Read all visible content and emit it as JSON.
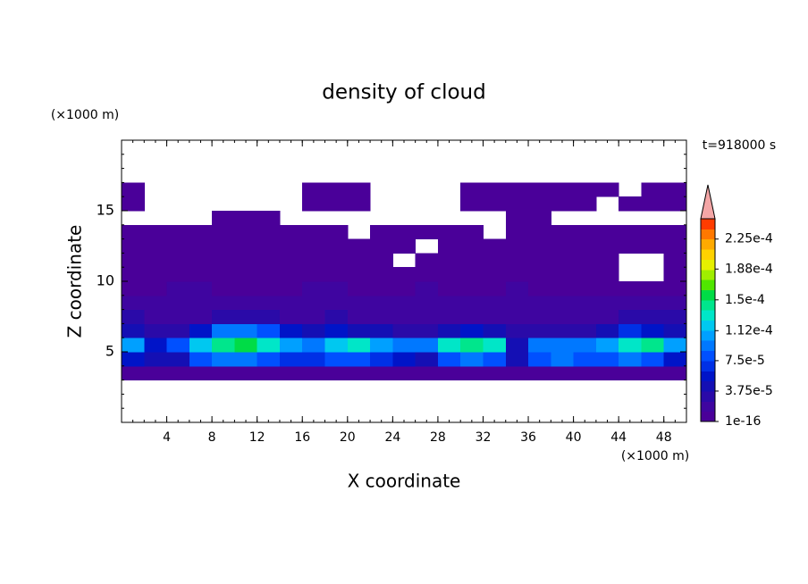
{
  "chart_data": {
    "type": "contour",
    "title": "density of cloud",
    "x_label": "X coordinate",
    "y_label": "Z coordinate",
    "x_unit": "(×1000 m)",
    "y_unit": "(×1000 m)",
    "time_label": "t=918000 s",
    "xlim": [
      0,
      50
    ],
    "ylim": [
      0,
      20
    ],
    "xticks": [
      4,
      8,
      12,
      16,
      20,
      24,
      28,
      32,
      36,
      40,
      44,
      48
    ],
    "yticks": [
      5,
      10,
      15
    ],
    "x": [
      1,
      3,
      5,
      7,
      9,
      11,
      13,
      15,
      17,
      19,
      21,
      23,
      25,
      27,
      29,
      31,
      33,
      35,
      37,
      39,
      41,
      43,
      45,
      47,
      49
    ],
    "z": [
      3.5,
      4.5,
      5.5,
      6.5,
      7.5,
      8.5,
      9.5,
      10.5,
      11.5,
      12.5,
      13.5,
      14.5,
      15.5,
      16.5
    ],
    "values": [
      [
        5e-06,
        5e-06,
        5e-06,
        5e-06,
        5e-06,
        5e-06,
        5e-06,
        5e-06,
        5e-06,
        5e-06,
        5e-06,
        5e-06,
        5e-06,
        5e-06,
        5e-06,
        5e-06,
        5e-06,
        5e-06,
        5e-06,
        5e-06,
        5e-06,
        5e-06,
        5e-06,
        5e-06,
        5e-06
      ],
      [
        6e-05,
        4e-05,
        5e-05,
        8e-05,
        9e-05,
        9e-05,
        8e-05,
        7e-05,
        7e-05,
        8e-05,
        8e-05,
        7e-05,
        6e-05,
        5e-05,
        8e-05,
        9e-05,
        8e-05,
        4e-05,
        8e-05,
        9e-05,
        8e-05,
        8e-05,
        9e-05,
        8e-05,
        6e-05
      ],
      [
        0.00011,
        6e-05,
        8e-05,
        0.00012,
        0.00015,
        0.00016,
        0.00013,
        0.00011,
        9e-05,
        0.00012,
        0.00013,
        0.00011,
        9e-05,
        9e-05,
        0.00013,
        0.00014,
        0.00013,
        5e-05,
        0.0001,
        0.0001,
        9e-05,
        0.00011,
        0.00013,
        0.00014,
        0.00011
      ],
      [
        5e-05,
        3e-05,
        3e-05,
        6e-05,
        9e-05,
        0.0001,
        8e-05,
        6e-05,
        5e-05,
        6e-05,
        5e-05,
        4e-05,
        3e-05,
        3e-05,
        5e-05,
        6e-05,
        4e-05,
        3e-05,
        3e-05,
        3e-05,
        3e-05,
        5e-05,
        7e-05,
        6e-05,
        5e-05
      ],
      [
        3e-05,
        2.5e-05,
        2e-05,
        2.5e-05,
        3e-05,
        3e-05,
        3e-05,
        2.5e-05,
        2.5e-05,
        3e-05,
        2.5e-05,
        2.5e-05,
        2e-05,
        2e-05,
        2.5e-05,
        2.5e-05,
        2e-05,
        2e-05,
        2e-05,
        1.5e-05,
        2e-05,
        2e-05,
        3e-05,
        3e-05,
        3e-05
      ],
      [
        2e-05,
        1.5e-05,
        1.3e-05,
        1.5e-05,
        1.5e-05,
        1.5e-05,
        1.5e-05,
        1.5e-05,
        1.3e-05,
        1.5e-05,
        1.3e-05,
        1.3e-05,
        1.3e-05,
        1.3e-05,
        1.3e-05,
        1.3e-05,
        1.3e-05,
        1.3e-05,
        1.3e-05,
        1.3e-05,
        1.3e-05,
        1.3e-05,
        1.5e-05,
        2e-05,
        2.5e-05
      ],
      [
        5e-06,
        5e-06,
        1.3e-05,
        1.3e-05,
        5e-06,
        5e-06,
        5e-06,
        5e-06,
        1.3e-05,
        1.3e-05,
        5e-06,
        5e-06,
        5e-06,
        1.3e-05,
        5e-06,
        5e-06,
        5e-06,
        1.3e-05,
        5e-06,
        5e-06,
        5e-06,
        5e-06,
        5e-06,
        5e-06,
        5e-06
      ],
      [
        5e-06,
        5e-06,
        5e-06,
        5e-06,
        5e-06,
        5e-06,
        5e-06,
        5e-06,
        5e-06,
        5e-06,
        5e-06,
        5e-06,
        5e-06,
        5e-06,
        5e-06,
        5e-06,
        5e-06,
        5e-06,
        5e-06,
        5e-06,
        5e-06,
        5e-06,
        null,
        null,
        5e-06
      ],
      [
        5e-06,
        5e-06,
        5e-06,
        5e-06,
        5e-06,
        5e-06,
        5e-06,
        5e-06,
        5e-06,
        5e-06,
        5e-06,
        5e-06,
        null,
        5e-06,
        5e-06,
        5e-06,
        5e-06,
        5e-06,
        5e-06,
        5e-06,
        5e-06,
        5e-06,
        null,
        null,
        5e-06
      ],
      [
        5e-06,
        5e-06,
        5e-06,
        5e-06,
        5e-06,
        5e-06,
        5e-06,
        5e-06,
        5e-06,
        5e-06,
        5e-06,
        5e-06,
        5e-06,
        null,
        5e-06,
        5e-06,
        5e-06,
        5e-06,
        5e-06,
        5e-06,
        5e-06,
        5e-06,
        5e-06,
        5e-06,
        5e-06
      ],
      [
        5e-06,
        5e-06,
        5e-06,
        5e-06,
        5e-06,
        5e-06,
        5e-06,
        5e-06,
        5e-06,
        5e-06,
        null,
        5e-06,
        5e-06,
        5e-06,
        5e-06,
        5e-06,
        null,
        5e-06,
        5e-06,
        5e-06,
        5e-06,
        5e-06,
        5e-06,
        5e-06,
        5e-06
      ],
      [
        null,
        null,
        null,
        null,
        5e-06,
        5e-06,
        5e-06,
        null,
        null,
        null,
        null,
        null,
        null,
        null,
        null,
        null,
        null,
        5e-06,
        5e-06,
        null,
        null,
        null,
        null,
        null,
        null
      ],
      [
        5e-06,
        null,
        null,
        null,
        null,
        null,
        null,
        null,
        5e-06,
        5e-06,
        5e-06,
        null,
        null,
        null,
        null,
        5e-06,
        5e-06,
        5e-06,
        5e-06,
        5e-06,
        5e-06,
        null,
        5e-06,
        5e-06,
        5e-06
      ],
      [
        5e-06,
        null,
        null,
        null,
        null,
        null,
        null,
        null,
        5e-06,
        5e-06,
        5e-06,
        null,
        null,
        null,
        null,
        5e-06,
        5e-06,
        5e-06,
        5e-06,
        5e-06,
        5e-06,
        5e-06,
        null,
        5e-06,
        5e-06
      ]
    ],
    "clim": [
      1e-16,
      0.00025
    ],
    "colors": [
      "#4a0099",
      "#3f05a0",
      "#2a0aa8",
      "#140fb4",
      "#0014c8",
      "#0030e6",
      "#0050ff",
      "#0078ff",
      "#00a0ff",
      "#00c8f0",
      "#00e6c8",
      "#00e68c",
      "#00dc46",
      "#50e600",
      "#a0ee00",
      "#e6f000",
      "#ffd200",
      "#ffaa00",
      "#ff7800",
      "#ff3c00"
    ],
    "extend_color": "#f4a6a6",
    "cticks": [
      {
        "value": 1e-16,
        "label": "1e-16"
      },
      {
        "value": 3.75e-05,
        "label": "3.75e-5"
      },
      {
        "value": 7.5e-05,
        "label": "7.5e-5"
      },
      {
        "value": 0.000112,
        "label": "1.12e-4"
      },
      {
        "value": 0.00015,
        "label": "1.5e-4"
      },
      {
        "value": 0.000188,
        "label": "1.88e-4"
      },
      {
        "value": 0.000225,
        "label": "2.25e-4"
      }
    ]
  }
}
